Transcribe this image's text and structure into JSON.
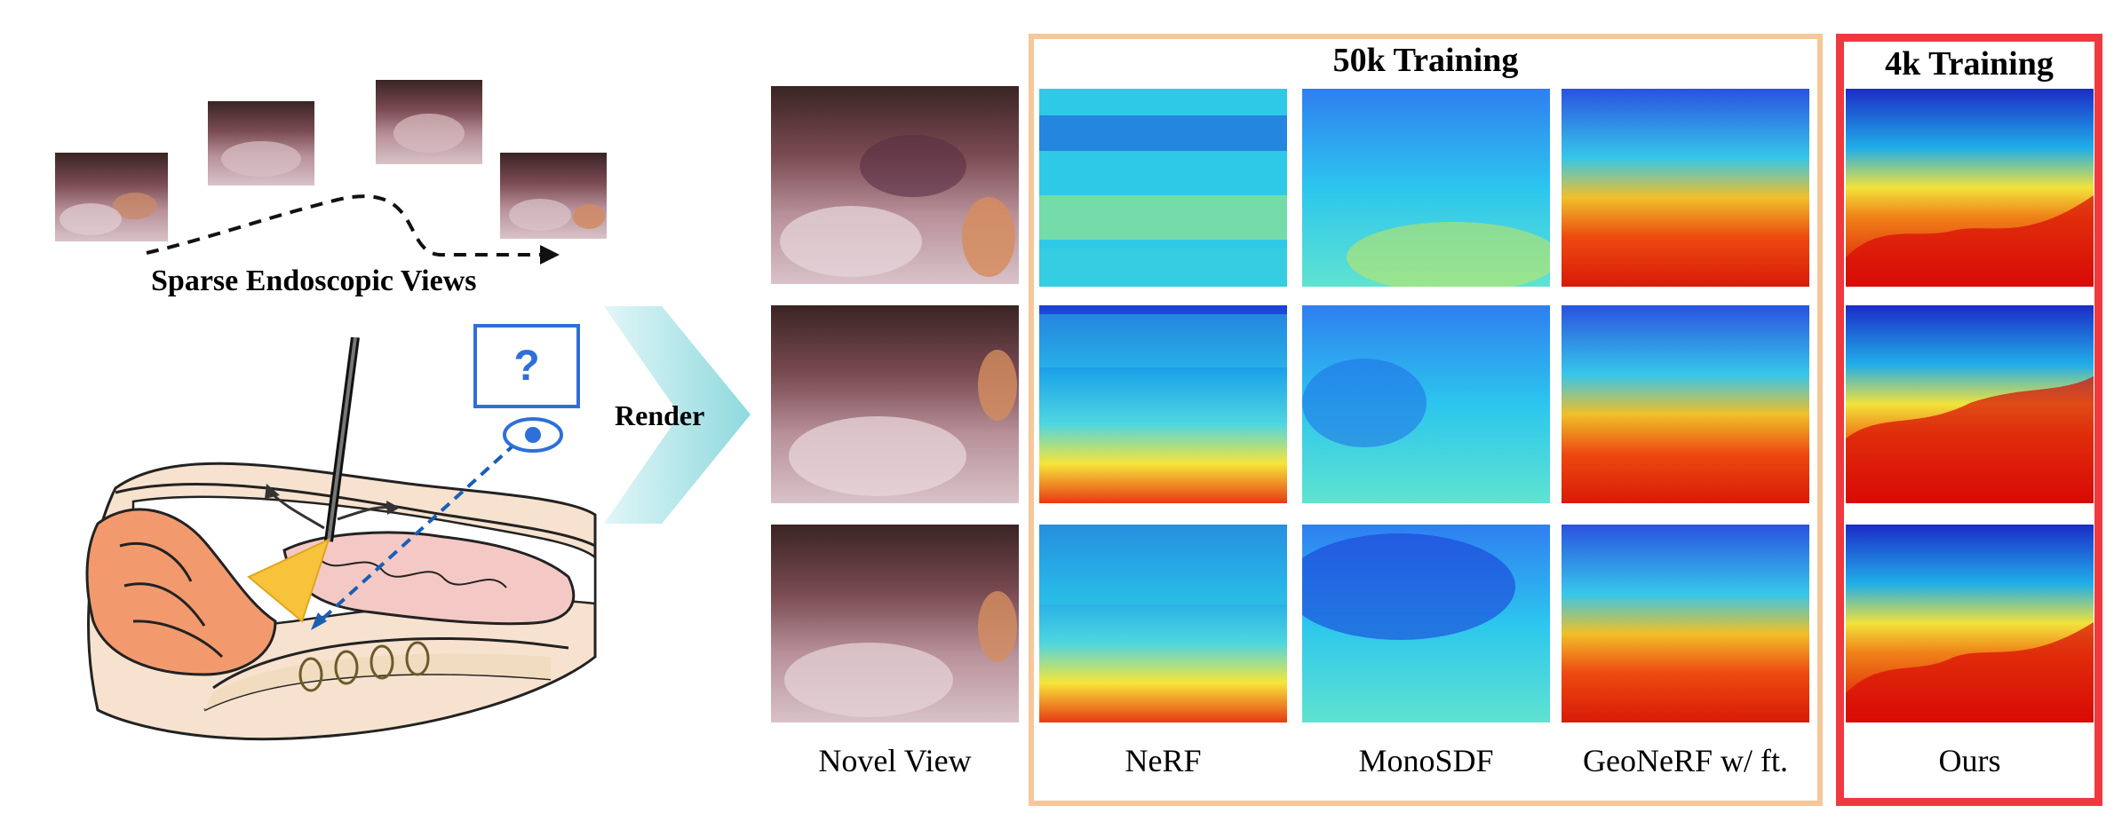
{
  "left_panel": {
    "sparse_views_label": "Sparse Endoscopic Views",
    "question_mark": "?"
  },
  "arrow_label": "Render",
  "groups": {
    "training_50k": "50k Training",
    "training_4k": "4k Training"
  },
  "columns": {
    "novel_view": "Novel View",
    "nerf": "NeRF",
    "monosdf": "MonoSDF",
    "geonerf": "GeoNeRF w/ ft.",
    "ours": "Ours"
  },
  "colors": {
    "orange_box": "#f6c799",
    "red_box": "#ee3a3f",
    "arrow_fill": "#a8e4e8",
    "view_dashed": "#1a5fb4",
    "yellow_cone": "#f6c33a"
  }
}
